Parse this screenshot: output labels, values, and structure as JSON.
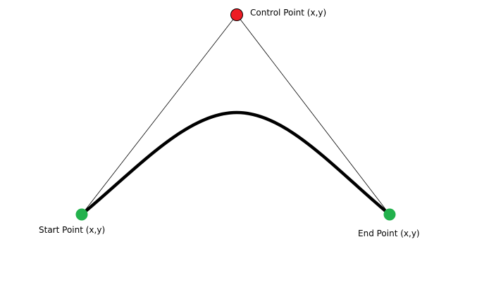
{
  "labels": {
    "control": "Control Point (x,y)",
    "start": "Start Point (x,y)",
    "end": "End Point (x,y)"
  },
  "colors": {
    "control_point": "#ed1c24",
    "endpoint": "#22b14c",
    "curve": "#000000",
    "guide_line": "#000000",
    "background": "#ffffff"
  }
}
